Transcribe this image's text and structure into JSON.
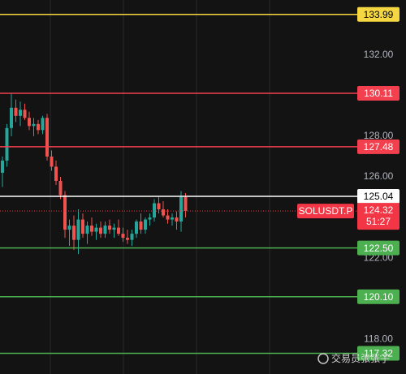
{
  "chart_data": {
    "type": "candlestick",
    "ylim": [
      116.3,
      134.7
    ],
    "yticks": [
      {
        "value": 132,
        "label": "132.00"
      },
      {
        "value": 128,
        "label": "128.00"
      },
      {
        "value": 126,
        "label": "126.00"
      },
      {
        "value": 122,
        "label": "122.00"
      },
      {
        "value": 118,
        "label": "118.00"
      }
    ],
    "up_color": "#26a69a",
    "down_color": "#ef5350",
    "open": [
      126.2,
      126.8,
      128.4,
      129.4,
      129.0,
      129.3,
      128.9,
      128.5,
      128.6,
      128.3,
      128.9,
      127.0,
      126.5,
      125.8,
      125.1,
      123.4,
      123.6,
      122.9,
      123.9,
      123.2,
      123.6,
      123.3,
      123.5,
      123.2,
      123.6,
      123.4,
      123.5,
      123.2,
      123.0,
      122.9,
      123.2,
      123.8,
      123.4,
      123.9,
      124.0,
      124.7,
      124.4,
      124.1,
      123.9,
      124.0,
      123.8,
      125.0
    ],
    "high": [
      127.0,
      128.6,
      130.1,
      129.8,
      129.7,
      129.6,
      129.2,
      128.9,
      128.8,
      129.0,
      129.1,
      127.3,
      126.8,
      126.0,
      125.3,
      123.9,
      124.1,
      124.4,
      124.2,
      123.8,
      124.0,
      123.7,
      123.8,
      123.8,
      123.9,
      123.7,
      123.9,
      123.5,
      123.4,
      123.4,
      123.9,
      124.2,
      124.0,
      124.2,
      124.9,
      125.0,
      124.8,
      124.4,
      124.2,
      124.3,
      125.3,
      125.2
    ],
    "low": [
      125.5,
      126.5,
      128.0,
      128.7,
      128.5,
      128.8,
      128.3,
      128.0,
      128.1,
      128.1,
      126.8,
      126.3,
      125.6,
      124.9,
      123.0,
      122.6,
      122.4,
      122.2,
      123.0,
      122.7,
      123.1,
      122.9,
      123.0,
      123.0,
      123.2,
      123.0,
      123.1,
      122.8,
      122.7,
      122.6,
      123.0,
      123.2,
      123.2,
      123.6,
      123.8,
      124.2,
      124.0,
      123.7,
      123.6,
      123.4,
      123.3,
      124.0
    ],
    "close": [
      126.8,
      128.4,
      129.4,
      129.0,
      129.3,
      128.9,
      128.5,
      128.6,
      128.3,
      128.9,
      127.0,
      126.5,
      125.8,
      125.1,
      123.4,
      123.6,
      122.9,
      123.9,
      123.2,
      123.6,
      123.3,
      123.5,
      123.2,
      123.6,
      123.4,
      123.5,
      123.2,
      123.0,
      122.9,
      123.2,
      123.8,
      123.4,
      123.9,
      124.0,
      124.7,
      124.4,
      124.1,
      123.9,
      124.0,
      123.8,
      125.0,
      124.32
    ],
    "price_lines": [
      {
        "value": 133.99,
        "label": "133.99",
        "color": "#f5d742"
      },
      {
        "value": 130.11,
        "label": "130.11",
        "color": "#f2404f"
      },
      {
        "value": 127.48,
        "label": "127.48",
        "color": "#f2404f"
      },
      {
        "value": 125.04,
        "label": "125.04",
        "color": "#ffffff"
      },
      {
        "value": 122.5,
        "label": "122.50",
        "color": "#4caf50"
      },
      {
        "value": 120.1,
        "label": "120.10",
        "color": "#4caf50"
      },
      {
        "value": 117.32,
        "label": "117.32",
        "color": "#4caf50"
      }
    ],
    "current": {
      "symbol": "SOLUSDT.P",
      "value": 124.32,
      "label": "124.32",
      "countdown": "51:27",
      "color": "#f23645"
    },
    "watermark": "交易员张张子"
  }
}
